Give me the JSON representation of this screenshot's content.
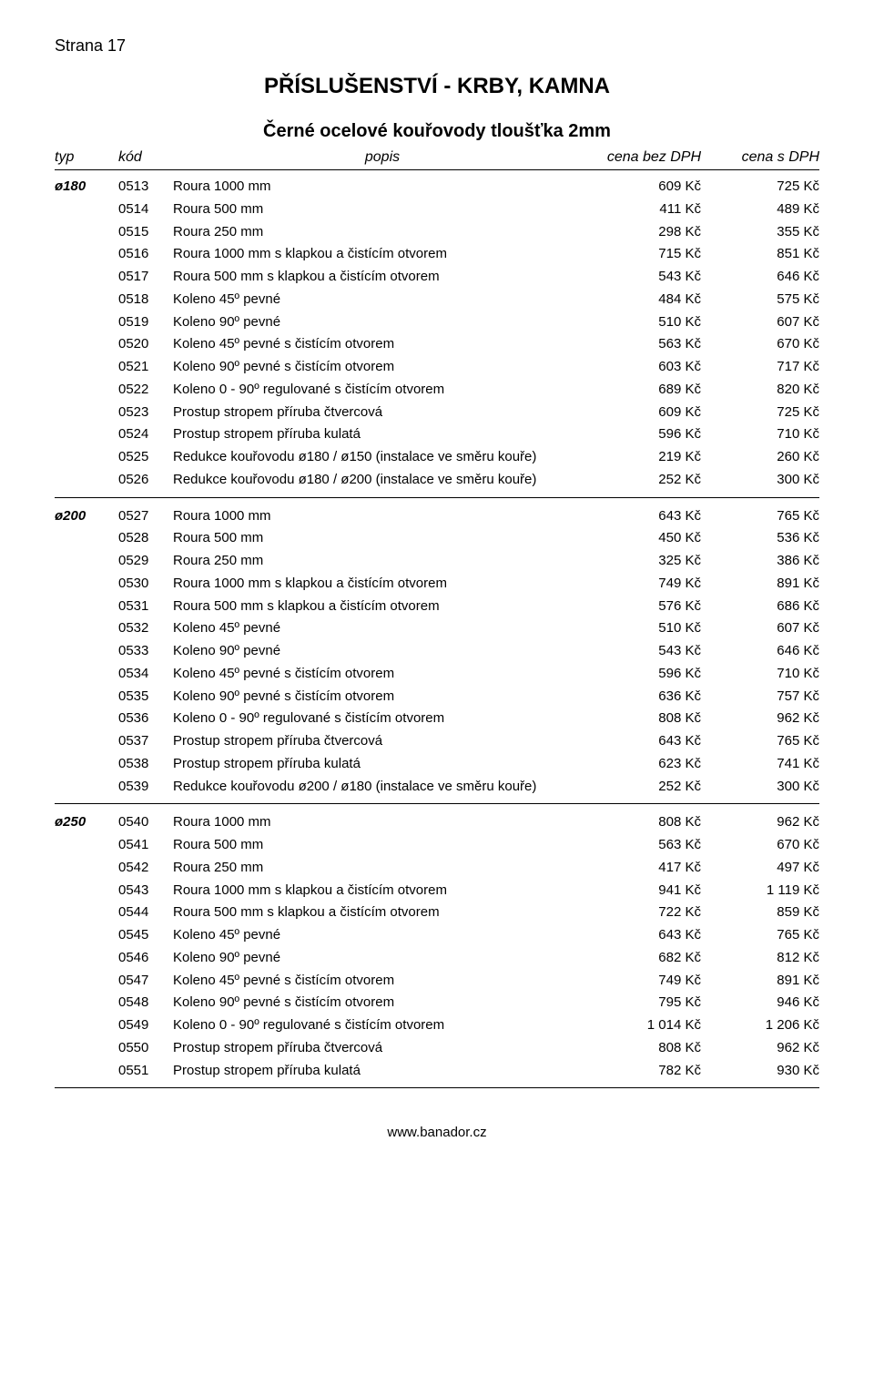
{
  "page_label": "Strana 17",
  "category_title": "PŘÍSLUŠENSTVÍ - KRBY, KAMNA",
  "section_title": "Černé ocelové kouřovody tloušťka 2mm",
  "footer_url": "www.banador.cz",
  "headers": {
    "typ": "typ",
    "kod": "kód",
    "popis": "popis",
    "p1": "cena bez DPH",
    "p2": "cena s DPH"
  },
  "groups": [
    {
      "typ": "ø180",
      "rows": [
        {
          "kod": "0513",
          "popis": "Roura 1000 mm",
          "p1": "609 Kč",
          "p2": "725 Kč"
        },
        {
          "kod": "0514",
          "popis": "Roura 500 mm",
          "p1": "411 Kč",
          "p2": "489 Kč"
        },
        {
          "kod": "0515",
          "popis": "Roura 250 mm",
          "p1": "298 Kč",
          "p2": "355 Kč"
        },
        {
          "kod": "0516",
          "popis": "Roura 1000 mm s klapkou a čistícím otvorem",
          "p1": "715 Kč",
          "p2": "851 Kč"
        },
        {
          "kod": "0517",
          "popis": "Roura 500 mm s klapkou a čistícím otvorem",
          "p1": "543 Kč",
          "p2": "646 Kč"
        },
        {
          "kod": "0518",
          "popis": "Koleno 45º pevné",
          "p1": "484 Kč",
          "p2": "575 Kč"
        },
        {
          "kod": "0519",
          "popis": "Koleno 90º pevné",
          "p1": "510 Kč",
          "p2": "607 Kč"
        },
        {
          "kod": "0520",
          "popis": "Koleno 45º pevné s čistícím otvorem",
          "p1": "563 Kč",
          "p2": "670 Kč"
        },
        {
          "kod": "0521",
          "popis": "Koleno 90º pevné s čistícím otvorem",
          "p1": "603 Kč",
          "p2": "717 Kč"
        },
        {
          "kod": "0522",
          "popis": "Koleno 0 - 90º regulované s čistícím otvorem",
          "p1": "689 Kč",
          "p2": "820 Kč"
        },
        {
          "kod": "0523",
          "popis": "Prostup stropem příruba čtvercová",
          "p1": "609 Kč",
          "p2": "725 Kč"
        },
        {
          "kod": "0524",
          "popis": "Prostup stropem příruba kulatá",
          "p1": "596 Kč",
          "p2": "710 Kč"
        },
        {
          "kod": "0525",
          "popis": "Redukce kouřovodu ø180 / ø150 (instalace ve směru kouře)",
          "p1": "219 Kč",
          "p2": "260 Kč"
        },
        {
          "kod": "0526",
          "popis": "Redukce kouřovodu ø180 / ø200 (instalace ve směru kouře)",
          "p1": "252 Kč",
          "p2": "300 Kč"
        }
      ]
    },
    {
      "typ": "ø200",
      "rows": [
        {
          "kod": "0527",
          "popis": "Roura 1000 mm",
          "p1": "643 Kč",
          "p2": "765 Kč"
        },
        {
          "kod": "0528",
          "popis": "Roura 500 mm",
          "p1": "450 Kč",
          "p2": "536 Kč"
        },
        {
          "kod": "0529",
          "popis": "Roura 250 mm",
          "p1": "325 Kč",
          "p2": "386 Kč"
        },
        {
          "kod": "0530",
          "popis": "Roura 1000 mm s klapkou a čistícím otvorem",
          "p1": "749 Kč",
          "p2": "891 Kč"
        },
        {
          "kod": "0531",
          "popis": "Roura 500 mm s klapkou a čistícím otvorem",
          "p1": "576 Kč",
          "p2": "686 Kč"
        },
        {
          "kod": "0532",
          "popis": "Koleno 45º pevné",
          "p1": "510 Kč",
          "p2": "607 Kč"
        },
        {
          "kod": "0533",
          "popis": "Koleno 90º pevné",
          "p1": "543 Kč",
          "p2": "646 Kč"
        },
        {
          "kod": "0534",
          "popis": "Koleno 45º pevné s čistícím otvorem",
          "p1": "596 Kč",
          "p2": "710 Kč"
        },
        {
          "kod": "0535",
          "popis": "Koleno 90º pevné s čistícím otvorem",
          "p1": "636 Kč",
          "p2": "757 Kč"
        },
        {
          "kod": "0536",
          "popis": "Koleno 0 - 90º regulované s čistícím otvorem",
          "p1": "808 Kč",
          "p2": "962 Kč"
        },
        {
          "kod": "0537",
          "popis": "Prostup stropem příruba čtvercová",
          "p1": "643 Kč",
          "p2": "765 Kč"
        },
        {
          "kod": "0538",
          "popis": "Prostup stropem příruba kulatá",
          "p1": "623 Kč",
          "p2": "741 Kč"
        },
        {
          "kod": "0539",
          "popis": "Redukce kouřovodu ø200 / ø180 (instalace ve směru kouře)",
          "p1": "252 Kč",
          "p2": "300 Kč"
        }
      ]
    },
    {
      "typ": "ø250",
      "rows": [
        {
          "kod": "0540",
          "popis": "Roura 1000 mm",
          "p1": "808 Kč",
          "p2": "962 Kč"
        },
        {
          "kod": "0541",
          "popis": "Roura 500 mm",
          "p1": "563 Kč",
          "p2": "670 Kč"
        },
        {
          "kod": "0542",
          "popis": "Roura 250 mm",
          "p1": "417 Kč",
          "p2": "497 Kč"
        },
        {
          "kod": "0543",
          "popis": "Roura 1000 mm s klapkou a čistícím otvorem",
          "p1": "941 Kč",
          "p2": "1 119 Kč"
        },
        {
          "kod": "0544",
          "popis": "Roura 500 mm s klapkou a čistícím otvorem",
          "p1": "722 Kč",
          "p2": "859 Kč"
        },
        {
          "kod": "0545",
          "popis": "Koleno 45º pevné",
          "p1": "643 Kč",
          "p2": "765 Kč"
        },
        {
          "kod": "0546",
          "popis": "Koleno 90º pevné",
          "p1": "682 Kč",
          "p2": "812 Kč"
        },
        {
          "kod": "0547",
          "popis": "Koleno 45º pevné s čistícím otvorem",
          "p1": "749 Kč",
          "p2": "891 Kč"
        },
        {
          "kod": "0548",
          "popis": "Koleno 90º pevné s čistícím otvorem",
          "p1": "795 Kč",
          "p2": "946 Kč"
        },
        {
          "kod": "0549",
          "popis": "Koleno 0 - 90º regulované s čistícím otvorem",
          "p1": "1 014 Kč",
          "p2": "1 206 Kč"
        },
        {
          "kod": "0550",
          "popis": "Prostup stropem příruba čtvercová",
          "p1": "808 Kč",
          "p2": "962 Kč"
        },
        {
          "kod": "0551",
          "popis": "Prostup stropem příruba kulatá",
          "p1": "782 Kč",
          "p2": "930 Kč"
        }
      ]
    }
  ]
}
